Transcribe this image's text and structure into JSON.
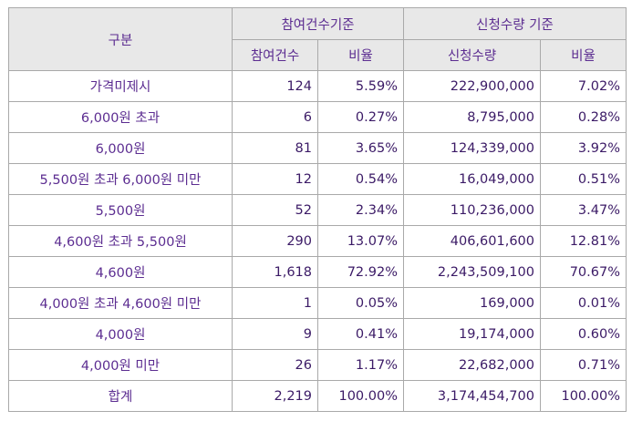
{
  "header": {
    "category": "구분",
    "group_participation": "참여건수기준",
    "group_request": "신청수량 기준",
    "col_participation_count": "참여건수",
    "col_participation_ratio": "비율",
    "col_request_qty": "신청수량",
    "col_request_ratio": "비율"
  },
  "rows": [
    {
      "label": "가격미제시",
      "count": "124",
      "count_ratio": "5.59%",
      "qty": "222,900,000",
      "qty_ratio": "7.02%"
    },
    {
      "label": "6,000원 초과",
      "count": "6",
      "count_ratio": "0.27%",
      "qty": "8,795,000",
      "qty_ratio": "0.28%"
    },
    {
      "label": "6,000원",
      "count": "81",
      "count_ratio": "3.65%",
      "qty": "124,339,000",
      "qty_ratio": "3.92%"
    },
    {
      "label": "5,500원 초과 6,000원 미만",
      "count": "12",
      "count_ratio": "0.54%",
      "qty": "16,049,000",
      "qty_ratio": "0.51%"
    },
    {
      "label": "5,500원",
      "count": "52",
      "count_ratio": "2.34%",
      "qty": "110,236,000",
      "qty_ratio": "3.47%"
    },
    {
      "label": "4,600원 초과 5,500원",
      "count": "290",
      "count_ratio": "13.07%",
      "qty": "406,601,600",
      "qty_ratio": "12.81%"
    },
    {
      "label": "4,600원",
      "count": "1,618",
      "count_ratio": "72.92%",
      "qty": "2,243,509,100",
      "qty_ratio": "70.67%"
    },
    {
      "label": "4,000원 초과 4,600원 미만",
      "count": "1",
      "count_ratio": "0.05%",
      "qty": "169,000",
      "qty_ratio": "0.01%"
    },
    {
      "label": "4,000원",
      "count": "9",
      "count_ratio": "0.41%",
      "qty": "19,174,000",
      "qty_ratio": "0.60%"
    },
    {
      "label": "4,000원 미만",
      "count": "26",
      "count_ratio": "1.17%",
      "qty": "22,682,000",
      "qty_ratio": "0.71%"
    },
    {
      "label": "합계",
      "count": "2,219",
      "count_ratio": "100.00%",
      "qty": "3,174,454,700",
      "qty_ratio": "100.00%"
    }
  ]
}
